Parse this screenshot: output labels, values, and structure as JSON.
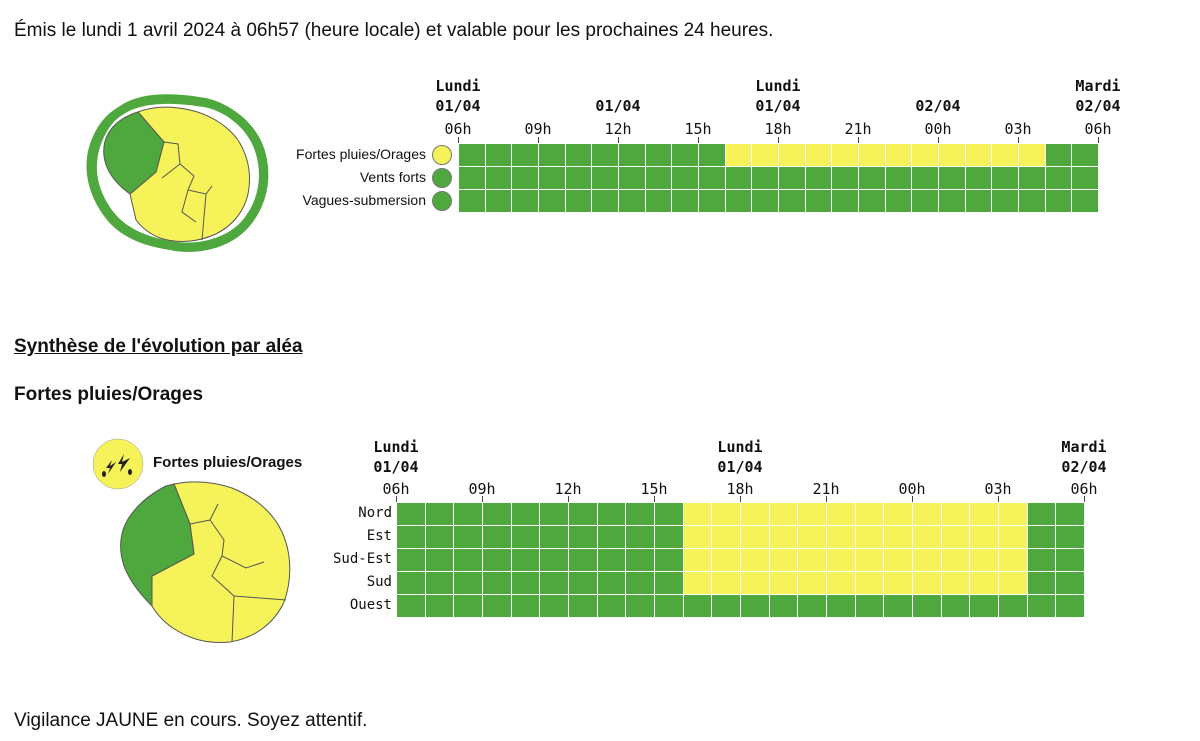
{
  "intro_text": "Émis le lundi 1 avril 2024 à 06h57 (heure locale) et valable pour les prochaines 24 heures.",
  "colors": {
    "green": "#4fa83d",
    "yellow": "#f6f35a",
    "grid_line": "#ffffff"
  },
  "overview": {
    "day_labels": [
      {
        "day": "Lundi",
        "date": "01/04"
      },
      {
        "day": "",
        "date": "01/04"
      },
      {
        "day": "Lundi",
        "date": "01/04"
      },
      {
        "day": "",
        "date": "02/04"
      },
      {
        "day": "Mardi",
        "date": "02/04"
      }
    ],
    "hours": [
      "06h",
      "09h",
      "12h",
      "15h",
      "18h",
      "21h",
      "00h",
      "03h",
      "06h"
    ],
    "rows": [
      {
        "label": "Fortes pluies/Orages",
        "icon": "thunderstorm-icon",
        "yellow_from": 10,
        "yellow_to": 21
      },
      {
        "label": "Vents forts",
        "icon": "wind-icon",
        "yellow_from": null,
        "yellow_to": null
      },
      {
        "label": "Vagues-submersion",
        "icon": "wave-icon",
        "yellow_from": null,
        "yellow_to": null
      }
    ]
  },
  "section_title": "Synthèse de l'évolution par aléa",
  "hazard": {
    "title": "Fortes pluies/Orages",
    "legend_label": "Fortes pluies/Orages",
    "day_labels": [
      {
        "day": "Lundi",
        "date": "01/04"
      },
      {
        "day": "Lundi",
        "date": "01/04"
      },
      {
        "day": "Mardi",
        "date": "02/04"
      }
    ],
    "hours": [
      "06h",
      "09h",
      "12h",
      "15h",
      "18h",
      "21h",
      "00h",
      "03h",
      "06h"
    ],
    "rows": [
      {
        "label": "Nord",
        "yellow_from": 10,
        "yellow_to": 21
      },
      {
        "label": "Est",
        "yellow_from": 10,
        "yellow_to": 21
      },
      {
        "label": "Sud-Est",
        "yellow_from": 10,
        "yellow_to": 21
      },
      {
        "label": "Sud",
        "yellow_from": 10,
        "yellow_to": 21
      },
      {
        "label": "Ouest",
        "yellow_from": null,
        "yellow_to": null
      }
    ]
  },
  "footer_text": "Vigilance JAUNE en cours. Soyez attentif."
}
